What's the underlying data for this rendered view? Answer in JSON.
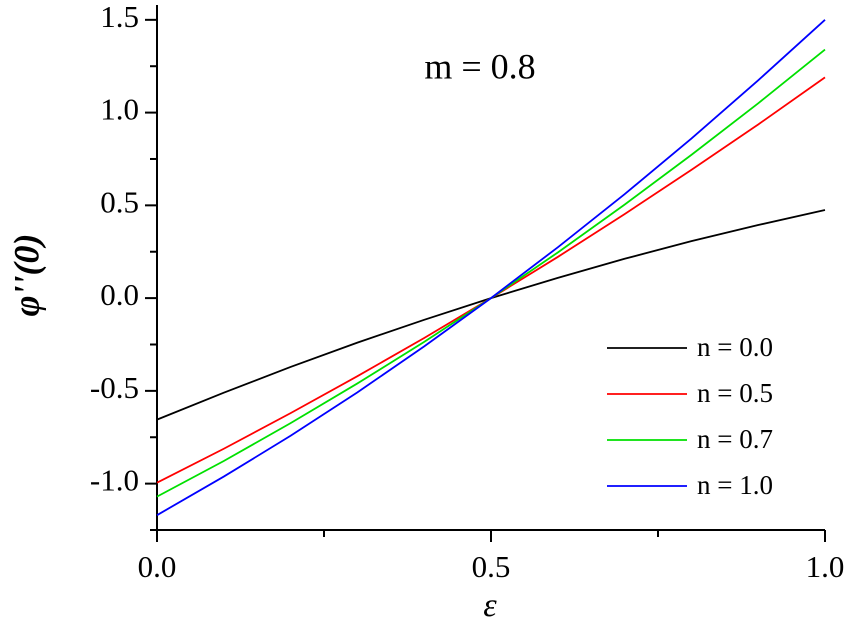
{
  "chart_data": {
    "type": "line",
    "annotation": "m = 0.8",
    "x_label": "ε",
    "y_label": "φ''(0)",
    "x": [
      0,
      0.1,
      0.2,
      0.3,
      0.4,
      0.5,
      0.6,
      0.7,
      0.8,
      0.9,
      1.0
    ],
    "series": [
      {
        "name": "n = 0.0",
        "color": "#000000",
        "values": [
          -0.655,
          -0.51,
          -0.371,
          -0.24,
          -0.117,
          0,
          0.109,
          0.212,
          0.307,
          0.394,
          0.475
        ]
      },
      {
        "name": "n = 0.5",
        "color": "#ff0000",
        "values": [
          -0.995,
          -0.812,
          -0.62,
          -0.421,
          -0.215,
          0,
          0.222,
          0.453,
          0.691,
          0.936,
          1.19
        ]
      },
      {
        "name": "n = 0.7",
        "color": "#00e000",
        "values": [
          -1.07,
          -0.878,
          -0.674,
          -0.46,
          -0.236,
          0,
          0.246,
          0.504,
          0.772,
          1.05,
          1.34
        ]
      },
      {
        "name": "n = 1.0",
        "color": "#0000ff",
        "values": [
          -1.17,
          -0.962,
          -0.742,
          -0.508,
          -0.26,
          0,
          0.274,
          0.56,
          0.86,
          1.174,
          1.5
        ]
      }
    ],
    "xlim": [
      0,
      1
    ],
    "ylim": [
      -1.25,
      1.58
    ],
    "xticks": [
      {
        "value": 0,
        "label": "0.0"
      },
      0.5,
      {
        "value": 1,
        "label": "1.0"
      }
    ],
    "xminorticks": [
      0.25,
      0.75
    ],
    "yticks": [
      {
        "value": -1,
        "label": "-1.0"
      },
      {
        "value": -0.5,
        "label": "-0.5"
      },
      {
        "value": 0,
        "label": "0.0"
      },
      0.5,
      {
        "value": 1,
        "label": "1.0"
      },
      {
        "value": 1.5,
        "label": "1.5"
      }
    ],
    "yminorticks": [
      -1.25,
      -0.75,
      -0.25,
      0.25,
      0.75,
      1.25
    ],
    "legend": "lower right",
    "grid": false
  }
}
